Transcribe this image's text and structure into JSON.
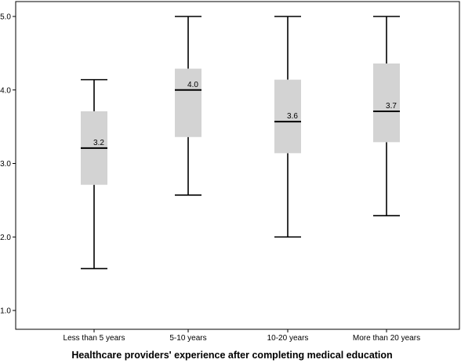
{
  "chart_data": {
    "type": "boxplot",
    "title": "",
    "xlabel": "Healthcare providers' experience after completing medical education",
    "ylabel": "",
    "ylim": [
      0.75,
      5.0
    ],
    "yticks": [
      1.0,
      2.0,
      3.0,
      4.0,
      5.0
    ],
    "ytick_labels": [
      "1.0",
      "2.0",
      "3.0",
      "4.0",
      "5.0"
    ],
    "grid": false,
    "legend": "none",
    "box_color": "#d3d3d3",
    "line_color": "#000000",
    "categories": [
      "Less than 5 years",
      "5-10 years",
      "10-20 years",
      "More than 20 years"
    ],
    "boxes": [
      {
        "category": "Less than 5 years",
        "min": 1.57,
        "q1": 2.71,
        "median": 3.21,
        "q3": 3.71,
        "max": 4.14,
        "median_label": "3.2"
      },
      {
        "category": "5-10 years",
        "min": 2.57,
        "q1": 3.36,
        "median": 4.0,
        "q3": 4.29,
        "max": 5.0,
        "median_label": "4.0"
      },
      {
        "category": "10-20 years",
        "min": 2.0,
        "q1": 3.14,
        "median": 3.57,
        "q3": 4.14,
        "max": 5.0,
        "median_label": "3.6"
      },
      {
        "category": "More than 20 years",
        "min": 2.29,
        "q1": 3.29,
        "median": 3.71,
        "q3": 4.36,
        "max": 5.0,
        "median_label": "3.7"
      }
    ]
  }
}
